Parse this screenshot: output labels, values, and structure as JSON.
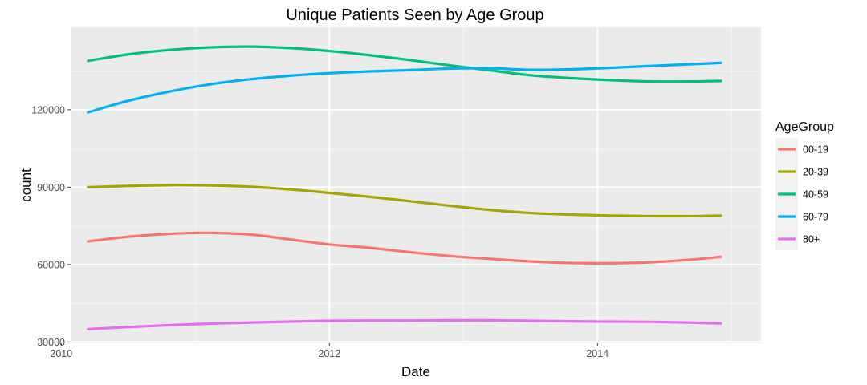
{
  "chart_data": {
    "type": "line",
    "title": "Unique Patients Seen by Age Group",
    "xlabel": "Date",
    "ylabel": "count",
    "xlim": [
      2010.07,
      2015.22
    ],
    "ylim": [
      29500,
      152000
    ],
    "x_ticks": [
      2010,
      2012,
      2014
    ],
    "y_ticks": [
      30000,
      60000,
      90000,
      120000
    ],
    "grid": true,
    "legend": {
      "title": "AgeGroup",
      "position": "right"
    },
    "series": [
      {
        "name": "00-19",
        "color": "#F8766D",
        "x": [
          2010.2,
          2010.5,
          2010.8,
          2011.1,
          2011.4,
          2011.7,
          2012.0,
          2012.3,
          2012.6,
          2012.9,
          2013.2,
          2013.5,
          2013.8,
          2014.1,
          2014.4,
          2014.7,
          2014.92
        ],
        "y": [
          69000,
          70800,
          71900,
          72300,
          71700,
          69800,
          67800,
          66500,
          64800,
          63300,
          62200,
          61200,
          60600,
          60500,
          60900,
          61900,
          63000
        ]
      },
      {
        "name": "20-39",
        "color": "#A3A500",
        "x": [
          2010.2,
          2010.5,
          2010.8,
          2011.1,
          2011.4,
          2011.7,
          2012.0,
          2012.3,
          2012.6,
          2012.9,
          2013.2,
          2013.5,
          2013.8,
          2014.1,
          2014.4,
          2014.7,
          2014.92
        ],
        "y": [
          90000,
          90500,
          90800,
          90700,
          90200,
          89200,
          87800,
          86300,
          84600,
          82800,
          81200,
          80000,
          79400,
          79000,
          78800,
          78800,
          79000
        ]
      },
      {
        "name": "40-59",
        "color": "#00BF7D",
        "x": [
          2010.2,
          2010.5,
          2010.8,
          2011.1,
          2011.4,
          2011.7,
          2012.0,
          2012.3,
          2012.6,
          2012.9,
          2013.2,
          2013.5,
          2013.8,
          2014.1,
          2014.4,
          2014.7,
          2014.92
        ],
        "y": [
          139000,
          141500,
          143200,
          144200,
          144500,
          144000,
          142800,
          141200,
          139300,
          137200,
          135300,
          133400,
          132300,
          131500,
          131000,
          131000,
          131200
        ]
      },
      {
        "name": "60-79",
        "color": "#00B0F6",
        "x": [
          2010.2,
          2010.5,
          2010.8,
          2011.1,
          2011.4,
          2011.7,
          2012.0,
          2012.3,
          2012.6,
          2012.9,
          2013.2,
          2013.5,
          2013.8,
          2014.1,
          2014.4,
          2014.7,
          2014.92
        ],
        "y": [
          119000,
          123500,
          127000,
          129800,
          131800,
          133200,
          134200,
          134900,
          135400,
          136000,
          136100,
          135500,
          135700,
          136300,
          137000,
          137700,
          138200
        ]
      },
      {
        "name": "80+",
        "color": "#E76BF3",
        "x": [
          2010.2,
          2010.5,
          2010.8,
          2011.1,
          2011.4,
          2011.7,
          2012.0,
          2012.3,
          2012.6,
          2012.9,
          2013.2,
          2013.5,
          2013.8,
          2014.1,
          2014.4,
          2014.7,
          2014.92
        ],
        "y": [
          35000,
          35800,
          36500,
          37100,
          37500,
          37900,
          38200,
          38300,
          38300,
          38400,
          38400,
          38200,
          38000,
          37900,
          37800,
          37500,
          37200
        ]
      }
    ]
  }
}
